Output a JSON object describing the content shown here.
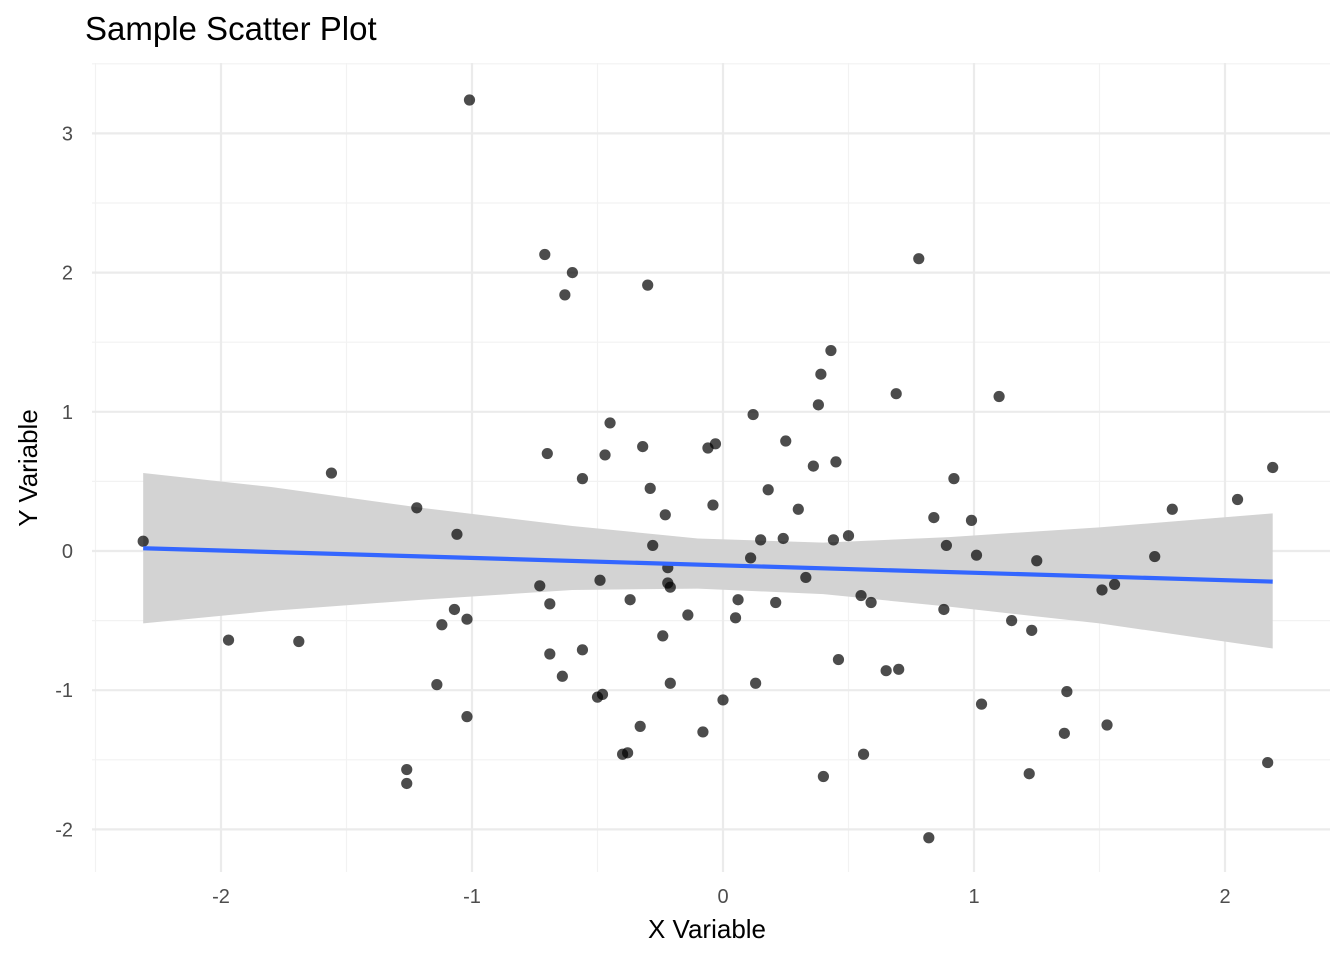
{
  "chart_data": {
    "type": "scatter",
    "title": "Sample Scatter Plot",
    "xlabel": "X Variable",
    "ylabel": "Y Variable",
    "xlim": [
      -2.5,
      2.42
    ],
    "ylim": [
      -2.3,
      3.5
    ],
    "x_ticks": [
      -2,
      -1,
      0,
      1,
      2
    ],
    "x_tick_labels": [
      "-2",
      "-1",
      "0",
      "1",
      "2"
    ],
    "y_ticks": [
      -2,
      -1,
      0,
      1,
      2,
      3
    ],
    "y_tick_labels": [
      "-2",
      "-1",
      "0",
      "1",
      "2",
      "3"
    ],
    "grid": true,
    "point_color": "#000000",
    "point_opacity": 0.7,
    "points": [
      {
        "x": -2.31,
        "y": 0.07
      },
      {
        "x": -1.97,
        "y": -0.64
      },
      {
        "x": -1.69,
        "y": -0.65
      },
      {
        "x": -1.56,
        "y": 0.56
      },
      {
        "x": -1.26,
        "y": -1.57
      },
      {
        "x": -1.26,
        "y": -1.67
      },
      {
        "x": -1.22,
        "y": 0.31
      },
      {
        "x": -1.14,
        "y": -0.96
      },
      {
        "x": -1.12,
        "y": -0.53
      },
      {
        "x": -1.07,
        "y": -0.42
      },
      {
        "x": -1.06,
        "y": 0.12
      },
      {
        "x": -1.02,
        "y": -0.49
      },
      {
        "x": -1.02,
        "y": -1.19
      },
      {
        "x": -1.01,
        "y": 3.24
      },
      {
        "x": -0.73,
        "y": -0.25
      },
      {
        "x": -0.71,
        "y": 2.13
      },
      {
        "x": -0.7,
        "y": 0.7
      },
      {
        "x": -0.69,
        "y": -0.38
      },
      {
        "x": -0.69,
        "y": -0.74
      },
      {
        "x": -0.64,
        "y": -0.9
      },
      {
        "x": -0.63,
        "y": 1.84
      },
      {
        "x": -0.6,
        "y": 2.0
      },
      {
        "x": -0.56,
        "y": 0.52
      },
      {
        "x": -0.56,
        "y": -0.71
      },
      {
        "x": -0.5,
        "y": -1.05
      },
      {
        "x": -0.49,
        "y": -0.21
      },
      {
        "x": -0.48,
        "y": -1.03
      },
      {
        "x": -0.47,
        "y": 0.69
      },
      {
        "x": -0.45,
        "y": 0.92
      },
      {
        "x": -0.4,
        "y": -1.46
      },
      {
        "x": -0.38,
        "y": -1.45
      },
      {
        "x": -0.37,
        "y": -0.35
      },
      {
        "x": -0.33,
        "y": -1.26
      },
      {
        "x": -0.32,
        "y": 0.75
      },
      {
        "x": -0.3,
        "y": 1.91
      },
      {
        "x": -0.29,
        "y": 0.45
      },
      {
        "x": -0.28,
        "y": 0.04
      },
      {
        "x": -0.24,
        "y": -0.61
      },
      {
        "x": -0.23,
        "y": 0.26
      },
      {
        "x": -0.22,
        "y": -0.12
      },
      {
        "x": -0.22,
        "y": -0.23
      },
      {
        "x": -0.21,
        "y": -0.95
      },
      {
        "x": -0.21,
        "y": -0.26
      },
      {
        "x": -0.14,
        "y": -0.46
      },
      {
        "x": -0.08,
        "y": -1.3
      },
      {
        "x": -0.06,
        "y": 0.74
      },
      {
        "x": -0.04,
        "y": 0.33
      },
      {
        "x": -0.03,
        "y": 0.77
      },
      {
        "x": 0.0,
        "y": -1.07
      },
      {
        "x": 0.05,
        "y": -0.48
      },
      {
        "x": 0.06,
        "y": -0.35
      },
      {
        "x": 0.11,
        "y": -0.05
      },
      {
        "x": 0.12,
        "y": 0.98
      },
      {
        "x": 0.13,
        "y": -0.95
      },
      {
        "x": 0.15,
        "y": 0.08
      },
      {
        "x": 0.18,
        "y": 0.44
      },
      {
        "x": 0.21,
        "y": -0.37
      },
      {
        "x": 0.24,
        "y": 0.09
      },
      {
        "x": 0.25,
        "y": 0.79
      },
      {
        "x": 0.3,
        "y": 0.3
      },
      {
        "x": 0.33,
        "y": -0.19
      },
      {
        "x": 0.36,
        "y": 0.61
      },
      {
        "x": 0.38,
        "y": 1.05
      },
      {
        "x": 0.39,
        "y": 1.27
      },
      {
        "x": 0.4,
        "y": -1.62
      },
      {
        "x": 0.43,
        "y": 1.44
      },
      {
        "x": 0.44,
        "y": 0.08
      },
      {
        "x": 0.45,
        "y": 0.64
      },
      {
        "x": 0.46,
        "y": -0.78
      },
      {
        "x": 0.5,
        "y": 0.11
      },
      {
        "x": 0.55,
        "y": -0.32
      },
      {
        "x": 0.56,
        "y": -1.46
      },
      {
        "x": 0.59,
        "y": -0.37
      },
      {
        "x": 0.65,
        "y": -0.86
      },
      {
        "x": 0.69,
        "y": 1.13
      },
      {
        "x": 0.7,
        "y": -0.85
      },
      {
        "x": 0.78,
        "y": 2.1
      },
      {
        "x": 0.82,
        "y": -2.06
      },
      {
        "x": 0.84,
        "y": 0.24
      },
      {
        "x": 0.88,
        "y": -0.42
      },
      {
        "x": 0.89,
        "y": 0.04
      },
      {
        "x": 0.92,
        "y": 0.52
      },
      {
        "x": 0.99,
        "y": 0.22
      },
      {
        "x": 1.01,
        "y": -0.03
      },
      {
        "x": 1.03,
        "y": -1.1
      },
      {
        "x": 1.1,
        "y": 1.11
      },
      {
        "x": 1.15,
        "y": -0.5
      },
      {
        "x": 1.22,
        "y": -1.6
      },
      {
        "x": 1.23,
        "y": -0.57
      },
      {
        "x": 1.25,
        "y": -0.07
      },
      {
        "x": 1.36,
        "y": -1.31
      },
      {
        "x": 1.37,
        "y": -1.01
      },
      {
        "x": 1.51,
        "y": -0.28
      },
      {
        "x": 1.53,
        "y": -1.25
      },
      {
        "x": 1.56,
        "y": -0.24
      },
      {
        "x": 1.72,
        "y": -0.04
      },
      {
        "x": 1.79,
        "y": 0.3
      },
      {
        "x": 2.05,
        "y": 0.37
      },
      {
        "x": 2.17,
        "y": -1.52
      },
      {
        "x": 2.19,
        "y": 0.6
      }
    ],
    "regression_line": {
      "color": "#3366FF",
      "x": [
        -2.31,
        2.19
      ],
      "y": [
        0.02,
        -0.22
      ]
    },
    "confidence_band": {
      "color": "#D3D3D3",
      "x": [
        -2.31,
        -1.8,
        -1.2,
        -0.6,
        -0.1,
        0.4,
        0.9,
        1.5,
        2.19
      ],
      "lower": [
        -0.52,
        -0.43,
        -0.35,
        -0.28,
        -0.27,
        -0.31,
        -0.4,
        -0.52,
        -0.7
      ],
      "upper": [
        0.56,
        0.46,
        0.31,
        0.18,
        0.09,
        0.06,
        0.1,
        0.17,
        0.27
      ]
    }
  }
}
